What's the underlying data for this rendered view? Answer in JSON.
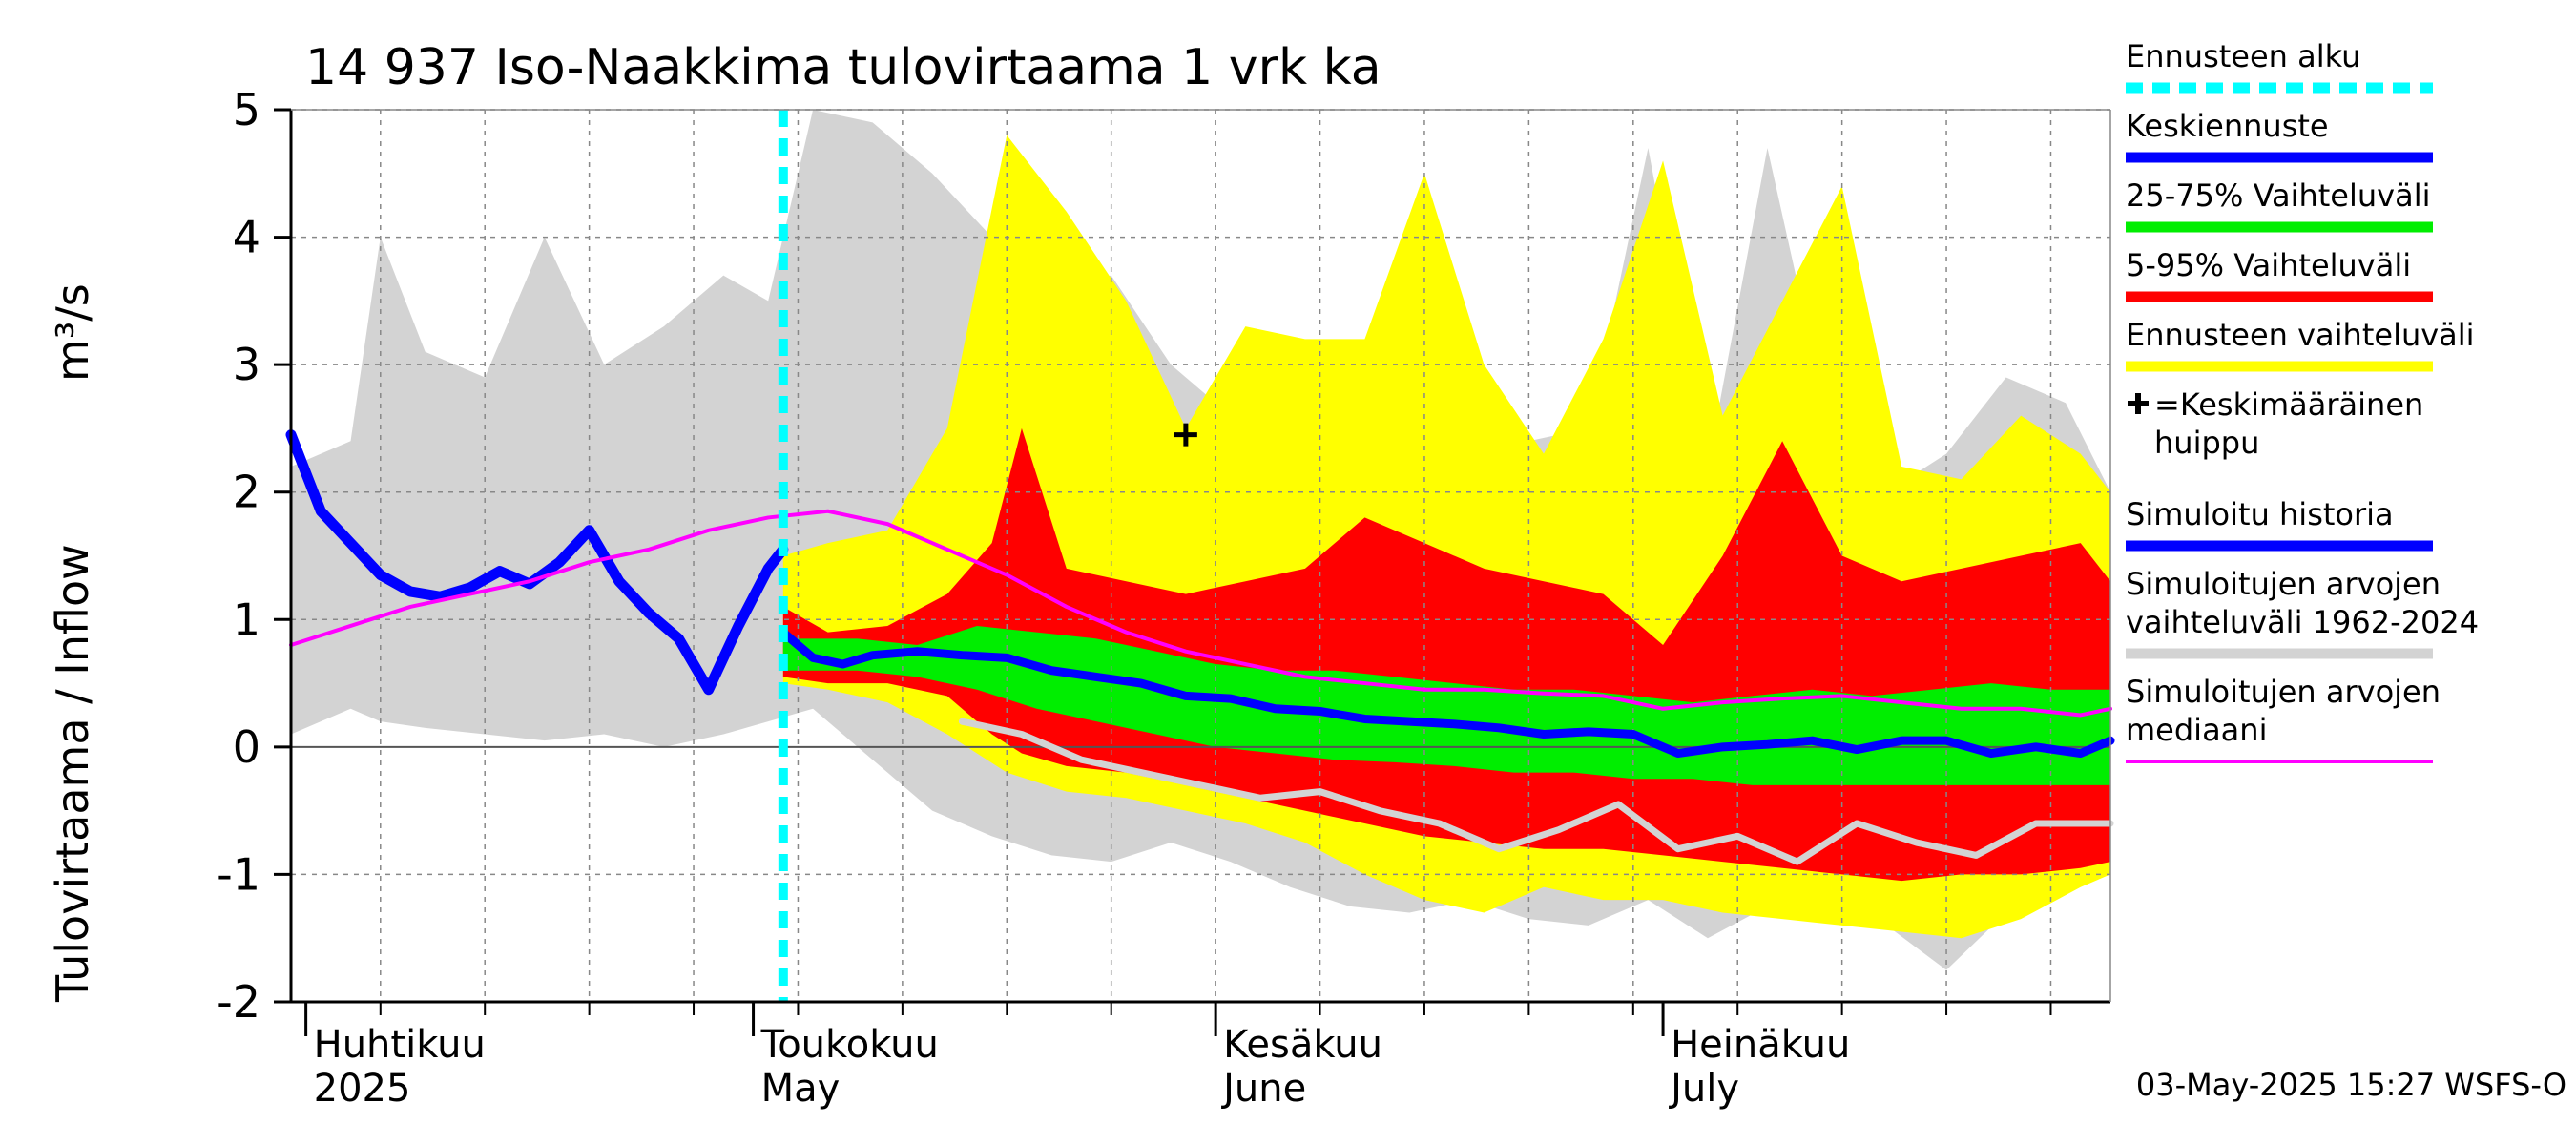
{
  "chart_data": {
    "type": "area",
    "title": "14 937 Iso-Naakkima tulovirtaama 1 vrk ka",
    "ylabel_left": "Tulovirtaama / Inflow",
    "ylabel_right": "m³/s",
    "ylim": [
      -2,
      5
    ],
    "yticks": [
      "-2",
      "-1",
      "0",
      "1",
      "2",
      "3",
      "4",
      "5"
    ],
    "x_start": "2025-03-31",
    "x_end": "2025-07-31",
    "forecast_start": "2025-05-03",
    "month_labels": [
      {
        "date": "2025-04-01",
        "line1": "Huhtikuu",
        "line2": "2025"
      },
      {
        "date": "2025-05-01",
        "line1": "Toukokuu",
        "line2": "May"
      },
      {
        "date": "2025-06-01",
        "line1": "Kesäkuu",
        "line2": "June"
      },
      {
        "date": "2025-07-01",
        "line1": "Heinäkuu",
        "line2": "July"
      }
    ],
    "mean_peak": {
      "date": "2025-05-30",
      "value": 2.45
    },
    "series": [
      {
        "name": "Simuloitujen arvojen vaihteluväli 1962-2024",
        "color": "#d3d3d3",
        "x": [
          "2025-03-31",
          "2025-04-04",
          "2025-04-06",
          "2025-04-09",
          "2025-04-13",
          "2025-04-17",
          "2025-04-21",
          "2025-04-25",
          "2025-04-29",
          "2025-05-02",
          "2025-05-05",
          "2025-05-09",
          "2025-05-13",
          "2025-05-17",
          "2025-05-21",
          "2025-05-25",
          "2025-05-29",
          "2025-06-02",
          "2025-06-06",
          "2025-06-10",
          "2025-06-14",
          "2025-06-18",
          "2025-06-22",
          "2025-06-26",
          "2025-06-30",
          "2025-07-04",
          "2025-07-08",
          "2025-07-12",
          "2025-07-16",
          "2025-07-20",
          "2025-07-24",
          "2025-07-28",
          "2025-07-31"
        ],
        "upper": [
          2.2,
          2.4,
          4.0,
          3.1,
          2.9,
          4.0,
          3.0,
          3.3,
          3.7,
          3.5,
          5.0,
          4.9,
          4.5,
          4.0,
          3.6,
          3.7,
          3.0,
          2.6,
          2.3,
          2.9,
          2.6,
          3.2,
          2.4,
          2.5,
          4.7,
          2.2,
          4.7,
          2.6,
          2.0,
          2.3,
          2.9,
          2.7,
          2.0
        ],
        "lower": [
          0.1,
          0.3,
          0.2,
          0.15,
          0.1,
          0.05,
          0.1,
          0.0,
          0.1,
          0.2,
          0.3,
          -0.1,
          -0.5,
          -0.7,
          -0.85,
          -0.9,
          -0.75,
          -0.9,
          -1.1,
          -1.25,
          -1.3,
          -1.2,
          -1.35,
          -1.4,
          -1.2,
          -1.5,
          -1.25,
          -1.3,
          -1.4,
          -1.75,
          -1.3,
          -1.1,
          -0.95
        ]
      },
      {
        "name": "Ennusteen vaihteluväli",
        "color": "#ffff00",
        "x": [
          "2025-05-03",
          "2025-05-06",
          "2025-05-10",
          "2025-05-14",
          "2025-05-18",
          "2025-05-22",
          "2025-05-26",
          "2025-05-30",
          "2025-06-03",
          "2025-06-07",
          "2025-06-11",
          "2025-06-15",
          "2025-06-19",
          "2025-06-23",
          "2025-06-27",
          "2025-07-01",
          "2025-07-05",
          "2025-07-09",
          "2025-07-13",
          "2025-07-17",
          "2025-07-21",
          "2025-07-25",
          "2025-07-29",
          "2025-07-31"
        ],
        "upper": [
          1.5,
          1.6,
          1.7,
          2.5,
          4.8,
          4.2,
          3.5,
          2.5,
          3.3,
          3.2,
          3.2,
          4.5,
          3.0,
          2.3,
          3.2,
          4.6,
          2.6,
          3.5,
          4.4,
          2.2,
          2.1,
          2.6,
          2.3,
          2.0
        ],
        "lower": [
          0.5,
          0.45,
          0.35,
          0.1,
          -0.2,
          -0.35,
          -0.4,
          -0.5,
          -0.6,
          -0.75,
          -1.0,
          -1.2,
          -1.3,
          -1.1,
          -1.2,
          -1.2,
          -1.3,
          -1.35,
          -1.4,
          -1.45,
          -1.5,
          -1.35,
          -1.1,
          -1.0
        ]
      },
      {
        "name": "5-95% Vaihteluväli",
        "color": "#ff0000",
        "x": [
          "2025-05-03",
          "2025-05-06",
          "2025-05-10",
          "2025-05-14",
          "2025-05-17",
          "2025-05-19",
          "2025-05-22",
          "2025-05-26",
          "2025-05-30",
          "2025-06-03",
          "2025-06-07",
          "2025-06-11",
          "2025-06-15",
          "2025-06-19",
          "2025-06-23",
          "2025-06-27",
          "2025-07-01",
          "2025-07-05",
          "2025-07-09",
          "2025-07-13",
          "2025-07-17",
          "2025-07-21",
          "2025-07-25",
          "2025-07-29",
          "2025-07-31"
        ],
        "upper": [
          1.1,
          0.9,
          0.95,
          1.2,
          1.6,
          2.5,
          1.4,
          1.3,
          1.2,
          1.3,
          1.4,
          1.8,
          1.6,
          1.4,
          1.3,
          1.2,
          0.8,
          1.5,
          2.4,
          1.5,
          1.3,
          1.4,
          1.5,
          1.6,
          1.3
        ],
        "lower": [
          0.55,
          0.5,
          0.5,
          0.4,
          0.1,
          -0.05,
          -0.15,
          -0.2,
          -0.3,
          -0.4,
          -0.5,
          -0.6,
          -0.7,
          -0.75,
          -0.8,
          -0.8,
          -0.85,
          -0.9,
          -0.95,
          -1.0,
          -1.05,
          -1.0,
          -1.0,
          -0.95,
          -0.9
        ]
      },
      {
        "name": "25-75% Vaihteluväli",
        "color": "#00ee00",
        "x": [
          "2025-05-03",
          "2025-05-08",
          "2025-05-12",
          "2025-05-16",
          "2025-05-20",
          "2025-05-24",
          "2025-05-28",
          "2025-06-01",
          "2025-06-05",
          "2025-06-09",
          "2025-06-13",
          "2025-06-17",
          "2025-06-21",
          "2025-06-25",
          "2025-06-29",
          "2025-07-03",
          "2025-07-07",
          "2025-07-11",
          "2025-07-15",
          "2025-07-19",
          "2025-07-23",
          "2025-07-27",
          "2025-07-31"
        ],
        "upper": [
          0.85,
          0.85,
          0.8,
          0.95,
          0.9,
          0.85,
          0.75,
          0.65,
          0.6,
          0.6,
          0.55,
          0.5,
          0.45,
          0.45,
          0.4,
          0.35,
          0.4,
          0.45,
          0.4,
          0.45,
          0.5,
          0.45,
          0.45
        ],
        "lower": [
          0.6,
          0.6,
          0.55,
          0.45,
          0.3,
          0.2,
          0.1,
          0.0,
          -0.05,
          -0.1,
          -0.12,
          -0.15,
          -0.2,
          -0.2,
          -0.25,
          -0.25,
          -0.3,
          -0.3,
          -0.3,
          -0.3,
          -0.3,
          -0.3,
          -0.3
        ]
      },
      {
        "name": "Keskiennuste",
        "color": "#0000ff",
        "x": [
          "2025-05-03",
          "2025-05-05",
          "2025-05-07",
          "2025-05-09",
          "2025-05-12",
          "2025-05-15",
          "2025-05-18",
          "2025-05-21",
          "2025-05-24",
          "2025-05-27",
          "2025-05-30",
          "2025-06-02",
          "2025-06-05",
          "2025-06-08",
          "2025-06-11",
          "2025-06-14",
          "2025-06-17",
          "2025-06-20",
          "2025-06-23",
          "2025-06-26",
          "2025-06-29",
          "2025-07-02",
          "2025-07-05",
          "2025-07-08",
          "2025-07-11",
          "2025-07-14",
          "2025-07-17",
          "2025-07-20",
          "2025-07-23",
          "2025-07-26",
          "2025-07-29",
          "2025-07-31"
        ],
        "y": [
          0.9,
          0.7,
          0.65,
          0.72,
          0.75,
          0.72,
          0.7,
          0.6,
          0.55,
          0.5,
          0.4,
          0.38,
          0.3,
          0.28,
          0.22,
          0.2,
          0.18,
          0.15,
          0.1,
          0.12,
          0.1,
          -0.05,
          0.0,
          0.02,
          0.05,
          -0.02,
          0.05,
          0.05,
          -0.05,
          0.0,
          -0.05,
          0.05
        ]
      },
      {
        "name": "Simuloitu historia",
        "color": "#0000ff",
        "x": [
          "2025-03-31",
          "2025-04-02",
          "2025-04-04",
          "2025-04-06",
          "2025-04-08",
          "2025-04-10",
          "2025-04-12",
          "2025-04-14",
          "2025-04-16",
          "2025-04-18",
          "2025-04-20",
          "2025-04-22",
          "2025-04-24",
          "2025-04-26",
          "2025-04-28",
          "2025-04-30",
          "2025-05-02",
          "2025-05-03"
        ],
        "y": [
          2.45,
          1.85,
          1.6,
          1.35,
          1.22,
          1.18,
          1.25,
          1.38,
          1.28,
          1.45,
          1.7,
          1.3,
          1.05,
          0.85,
          0.45,
          0.95,
          1.4,
          1.55
        ]
      },
      {
        "name": "Simuloitujen arvojen mediaani",
        "color": "#ff00ff",
        "x": [
          "2025-03-31",
          "2025-04-04",
          "2025-04-08",
          "2025-04-12",
          "2025-04-16",
          "2025-04-20",
          "2025-04-24",
          "2025-04-28",
          "2025-05-02",
          "2025-05-06",
          "2025-05-10",
          "2025-05-14",
          "2025-05-18",
          "2025-05-22",
          "2025-05-26",
          "2025-05-30",
          "2025-06-03",
          "2025-06-07",
          "2025-06-11",
          "2025-06-15",
          "2025-06-19",
          "2025-06-23",
          "2025-06-27",
          "2025-07-01",
          "2025-07-05",
          "2025-07-09",
          "2025-07-13",
          "2025-07-17",
          "2025-07-21",
          "2025-07-25",
          "2025-07-29",
          "2025-07-31"
        ],
        "y": [
          0.8,
          0.95,
          1.1,
          1.2,
          1.3,
          1.45,
          1.55,
          1.7,
          1.8,
          1.85,
          1.75,
          1.55,
          1.35,
          1.1,
          0.9,
          0.75,
          0.65,
          0.55,
          0.5,
          0.45,
          0.45,
          0.42,
          0.4,
          0.3,
          0.35,
          0.38,
          0.4,
          0.35,
          0.3,
          0.3,
          0.25,
          0.3
        ]
      },
      {
        "name": "",
        "color": "#d3d3d3",
        "x": [
          "2025-05-15",
          "2025-05-19",
          "2025-05-23",
          "2025-05-27",
          "2025-05-31",
          "2025-06-04",
          "2025-06-08",
          "2025-06-12",
          "2025-06-16",
          "2025-06-20",
          "2025-06-24",
          "2025-06-28",
          "2025-07-02",
          "2025-07-06",
          "2025-07-10",
          "2025-07-14",
          "2025-07-18",
          "2025-07-22",
          "2025-07-26",
          "2025-07-31"
        ],
        "y": [
          0.2,
          0.1,
          -0.1,
          -0.2,
          -0.3,
          -0.4,
          -0.35,
          -0.5,
          -0.6,
          -0.8,
          -0.65,
          -0.45,
          -0.8,
          -0.7,
          -0.9,
          -0.6,
          -0.75,
          -0.85,
          -0.6,
          -0.6
        ]
      }
    ],
    "legend": [
      {
        "label": "Ennusteen alku",
        "color": "#00ffff",
        "style": "dotted"
      },
      {
        "label": "Keskiennuste",
        "color": "#0000ff",
        "style": "line"
      },
      {
        "label": "25-75% Vaihteluväli",
        "color": "#00ee00",
        "style": "line"
      },
      {
        "label": "5-95% Vaihteluväli",
        "color": "#ff0000",
        "style": "line"
      },
      {
        "label": "Ennusteen vaihteluväli",
        "color": "#ffff00",
        "style": "line"
      },
      {
        "label": "=Keskimääräinen huippu",
        "color": "#000000",
        "style": "plus"
      },
      {
        "label": "Simuloitu historia",
        "color": "#0000ff",
        "style": "line"
      },
      {
        "label": "Simuloitujen arvojen vaihteluväli 1962-2024",
        "color": "#d3d3d3",
        "style": "line"
      },
      {
        "label": "Simuloitujen arvojen mediaani",
        "color": "#ff00ff",
        "style": "thin"
      }
    ],
    "footer": "03-May-2025 15:27 WSFS-O"
  }
}
